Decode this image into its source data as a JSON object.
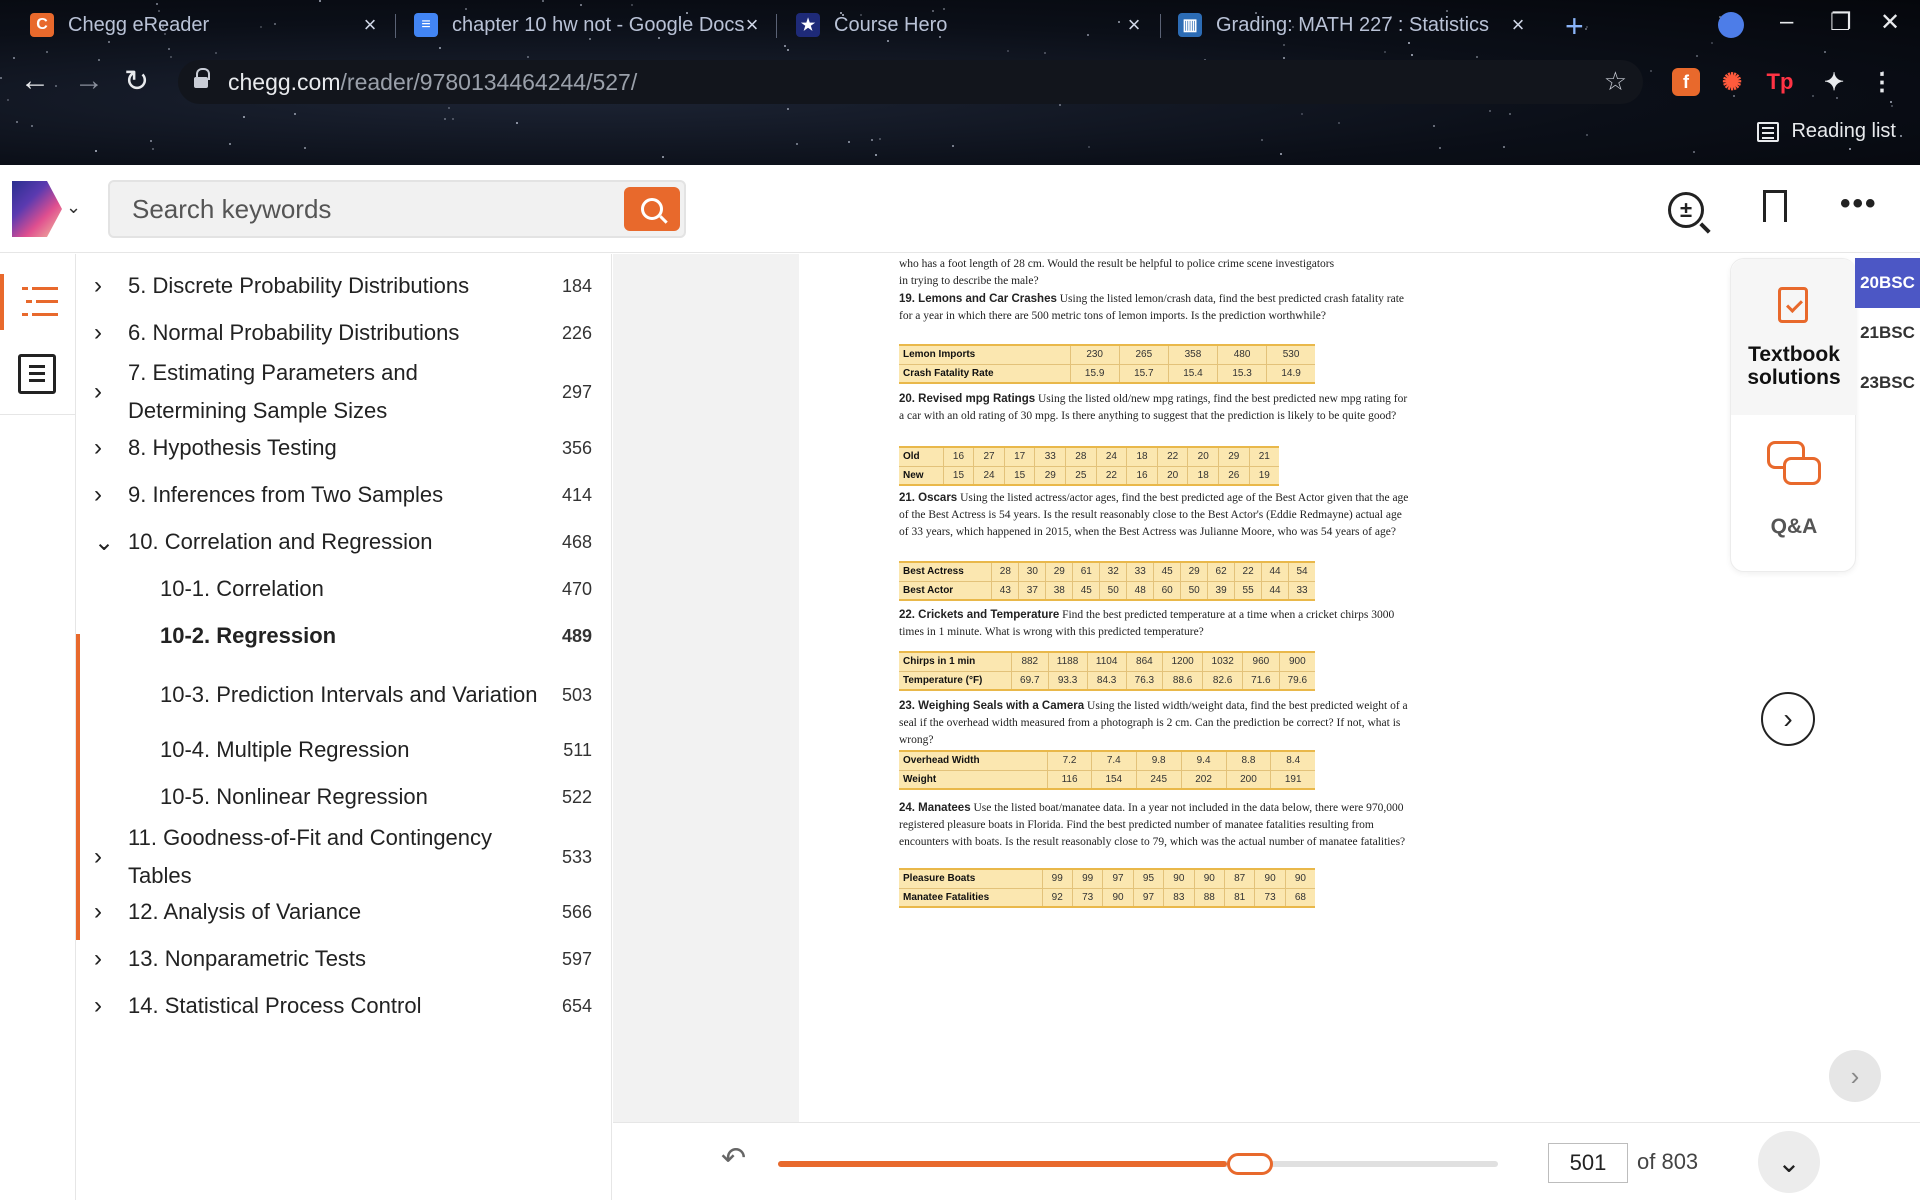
{
  "browser": {
    "tabs": [
      {
        "title": "Chegg eReader",
        "icon": "chegg-favicon",
        "glyph": "C",
        "color": "#e8692c"
      },
      {
        "title": "chapter 10 hw not - Google Docs",
        "icon": "docs-favicon",
        "glyph": "≡",
        "color": "#4285f4"
      },
      {
        "title": "Course Hero",
        "icon": "coursehero-favicon",
        "glyph": "★",
        "color": "#1e2a78"
      },
      {
        "title": "Grading: MATH 227 : Statistics",
        "icon": "canvas-favicon",
        "glyph": "▥",
        "color": "#2c6cb5"
      }
    ],
    "url_domain": "chegg.com",
    "url_path": "/reader/9780134464244/527/",
    "reading_list": "Reading list"
  },
  "header": {
    "search_placeholder": "Search keywords"
  },
  "toc": [
    {
      "label": "5. Discrete Probability Distributions",
      "page": "184",
      "chevron": "›"
    },
    {
      "label": "6. Normal Probability Distributions",
      "page": "226",
      "chevron": "›"
    },
    {
      "label": "7. Estimating Parameters and Determining Sample Sizes",
      "page": "297",
      "chevron": "›"
    },
    {
      "label": "8. Hypothesis Testing",
      "page": "356",
      "chevron": "›"
    },
    {
      "label": "9. Inferences from Two Samples",
      "page": "414",
      "chevron": "›"
    },
    {
      "label": "10. Correlation and Regression",
      "page": "468",
      "chevron": "⌄"
    },
    {
      "label": "10-1. Correlation",
      "page": "470"
    },
    {
      "label": "10-2. Regression",
      "page": "489"
    },
    {
      "label": "10-3. Prediction Intervals and Variation",
      "page": "503"
    },
    {
      "label": "10-4. Multiple Regression",
      "page": "511"
    },
    {
      "label": "10-5. Nonlinear Regression",
      "page": "522"
    },
    {
      "label": "11. Goodness-of-Fit and Contingency Tables",
      "page": "533",
      "chevron": "›"
    },
    {
      "label": "12. Analysis of Variance",
      "page": "566",
      "chevron": "›"
    },
    {
      "label": "13. Nonparametric Tests",
      "page": "597",
      "chevron": "›"
    },
    {
      "label": "14. Statistical Process Control",
      "page": "654",
      "chevron": "›"
    }
  ],
  "book_page": {
    "intro": [
      "who has a foot length of 28 cm. Would the result be helpful to police crime scene investigators",
      "in trying to describe the male?"
    ],
    "exercises": [
      {
        "title": "19. Lemons and Car Crashes",
        "body": "Using the listed lemon/crash data, find the best predicted crash fatality rate for a year in which there are 500 metric tons of lemon imports. Is the prediction worthwhile?",
        "rows": [
          {
            "label": "Lemon Imports",
            "values": [
              "230",
              "265",
              "358",
              "480",
              "530"
            ]
          },
          {
            "label": "Crash Fatality Rate",
            "values": [
              "15.9",
              "15.7",
              "15.4",
              "15.3",
              "14.9"
            ]
          }
        ]
      },
      {
        "title": "20. Revised mpg Ratings",
        "body": "Using the listed old/new mpg ratings, find the best predicted new mpg rating for a car with an old rating of 30 mpg. Is there anything to suggest that the prediction is likely to be quite good?",
        "rows": [
          {
            "label": "Old",
            "values": [
              "16",
              "27",
              "17",
              "33",
              "28",
              "24",
              "18",
              "22",
              "20",
              "29",
              "21"
            ]
          },
          {
            "label": "New",
            "values": [
              "15",
              "24",
              "15",
              "29",
              "25",
              "22",
              "16",
              "20",
              "18",
              "26",
              "19"
            ]
          }
        ]
      },
      {
        "title": "21. Oscars",
        "body": "Using the listed actress/actor ages, find the best predicted age of the Best Actor given that the age of the Best Actress is 54 years. Is the result reasonably close to the Best Actor's (Eddie Redmayne) actual age of 33 years, which happened in 2015, when the Best Actress was Julianne Moore, who was 54 years of age?",
        "rows": [
          {
            "label": "Best Actress",
            "values": [
              "28",
              "30",
              "29",
              "61",
              "32",
              "33",
              "45",
              "29",
              "62",
              "22",
              "44",
              "54"
            ]
          },
          {
            "label": "Best Actor",
            "values": [
              "43",
              "37",
              "38",
              "45",
              "50",
              "48",
              "60",
              "50",
              "39",
              "55",
              "44",
              "33"
            ]
          }
        ]
      },
      {
        "title": "22. Crickets and Temperature",
        "body": "Find the best predicted temperature at a time when a cricket chirps 3000 times in 1 minute. What is wrong with this predicted temperature?",
        "rows": [
          {
            "label": "Chirps in 1 min",
            "values": [
              "882",
              "1188",
              "1104",
              "864",
              "1200",
              "1032",
              "960",
              "900"
            ]
          },
          {
            "label": "Temperature (°F)",
            "values": [
              "69.7",
              "93.3",
              "84.3",
              "76.3",
              "88.6",
              "82.6",
              "71.6",
              "79.6"
            ]
          }
        ]
      },
      {
        "title": "23. Weighing Seals with a Camera",
        "body": "Using the listed width/weight data, find the best predicted weight of a seal if the overhead width measured from a photograph is 2 cm. Can the prediction be correct? If not, what is wrong?",
        "rows": [
          {
            "label": "Overhead Width",
            "values": [
              "7.2",
              "7.4",
              "9.8",
              "9.4",
              "8.8",
              "8.4"
            ]
          },
          {
            "label": "Weight",
            "values": [
              "116",
              "154",
              "245",
              "202",
              "200",
              "191"
            ]
          }
        ]
      },
      {
        "title": "24. Manatees",
        "body": "Use the listed boat/manatee data. In a year not included in the data below, there were 970,000 registered pleasure boats in Florida. Find the best predicted number of manatee fatalities resulting from encounters with boats. Is the result reasonably close to 79, which was the actual number of manatee fatalities?",
        "rows": [
          {
            "label": "Pleasure Boats",
            "values": [
              "99",
              "99",
              "97",
              "95",
              "90",
              "90",
              "87",
              "90",
              "90"
            ]
          },
          {
            "label": "Manatee Fatalities",
            "values": [
              "92",
              "73",
              "90",
              "97",
              "83",
              "88",
              "81",
              "73",
              "68"
            ]
          }
        ]
      }
    ]
  },
  "right_panel": {
    "textbook_solutions": "Textbook solutions",
    "qa": "Q&A"
  },
  "course_tags": [
    "20BSC",
    "21BSC",
    "23BSC"
  ],
  "footer": {
    "current_page": "501",
    "total": "of 803",
    "progress_fraction": 0.624
  },
  "colors": {
    "accent": "#e8692c",
    "tag_active": "#4c57c5",
    "table_bg": "#fbe7b0"
  }
}
